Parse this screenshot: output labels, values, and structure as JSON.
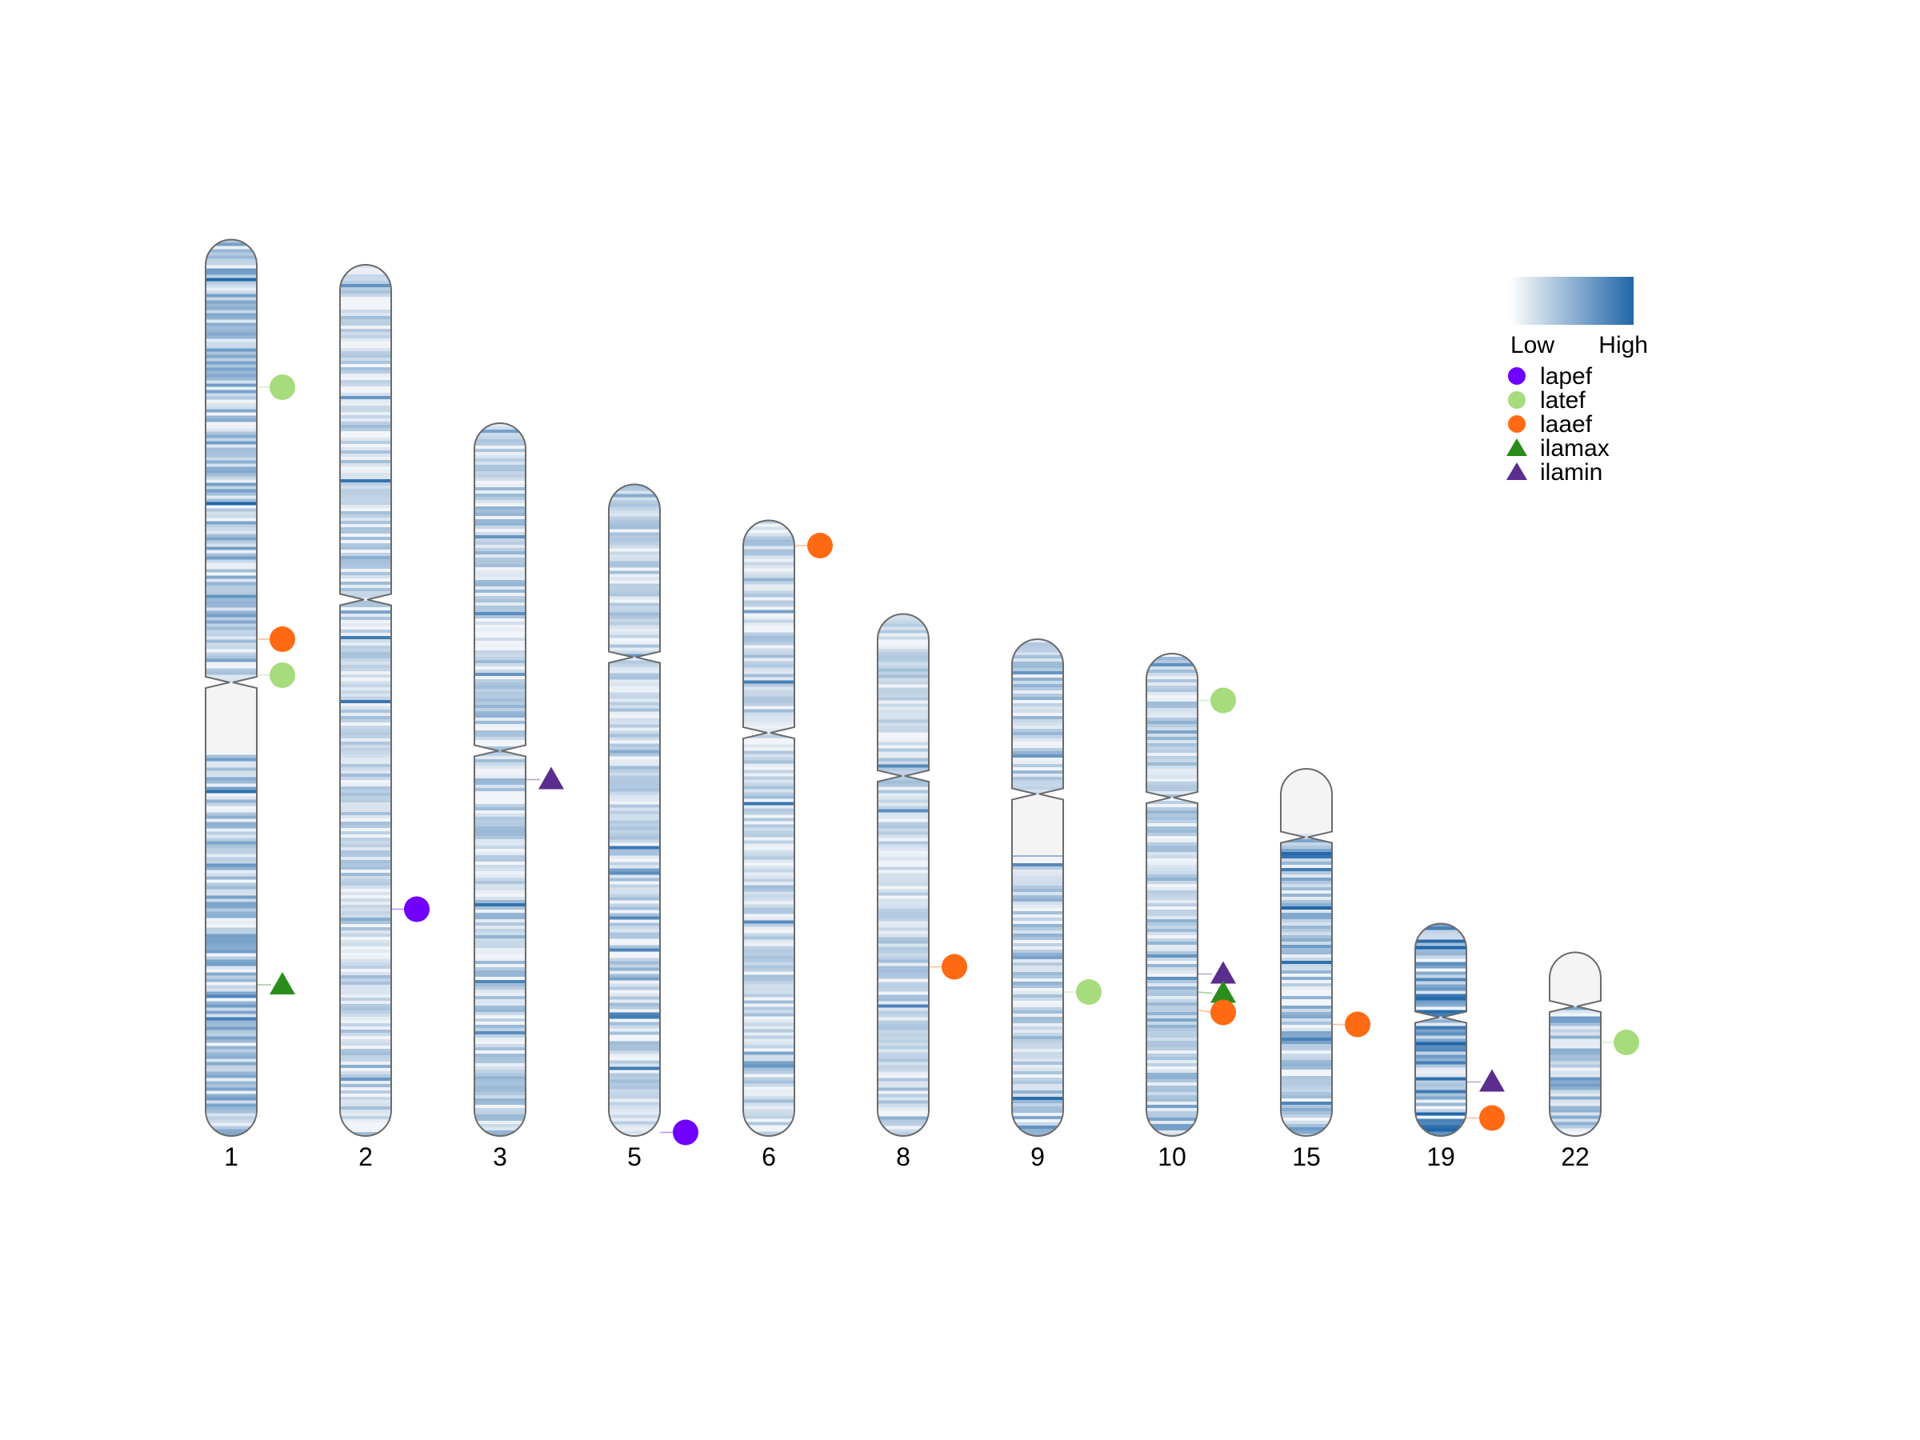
{
  "colors": {
    "low": "#f1f4f8",
    "high": "#2066a8",
    "outline": "#6b6b6b",
    "lapef": "#7000ff",
    "latef": "#a6dc7c",
    "laaef": "#ff6a13",
    "ilamax": "#2a8c1a",
    "ilamin": "#5b2d8e"
  },
  "legend": {
    "gradient_low": "Low",
    "gradient_high": "High",
    "items": [
      {
        "key": "lapef",
        "label": "lapef",
        "shape": "circle"
      },
      {
        "key": "latef",
        "label": "latef",
        "shape": "circle"
      },
      {
        "key": "laaef",
        "label": "laaef",
        "shape": "circle"
      },
      {
        "key": "ilamax",
        "label": "ilamax",
        "shape": "triangle"
      },
      {
        "key": "ilamin",
        "label": "ilamin",
        "shape": "triangle"
      }
    ]
  },
  "chromosomes": [
    {
      "name": "1",
      "length": 249,
      "centromere": 123,
      "gap": [
        123,
        143
      ],
      "density": 0.45,
      "seed": 1
    },
    {
      "name": "2",
      "length": 242,
      "centromere": 93,
      "gap": null,
      "density": 0.3,
      "seed": 2
    },
    {
      "name": "3",
      "length": 198,
      "centromere": 91,
      "gap": null,
      "density": 0.35,
      "seed": 3
    },
    {
      "name": "5",
      "length": 181,
      "centromere": 48,
      "gap": null,
      "density": 0.3,
      "seed": 5
    },
    {
      "name": "6",
      "length": 171,
      "centromere": 59,
      "gap": null,
      "density": 0.3,
      "seed": 6
    },
    {
      "name": "8",
      "length": 145,
      "centromere": 45,
      "gap": null,
      "density": 0.3,
      "seed": 8
    },
    {
      "name": "9",
      "length": 138,
      "centromere": 43,
      "gap": [
        43,
        60
      ],
      "density": 0.35,
      "seed": 9
    },
    {
      "name": "10",
      "length": 134,
      "centromere": 40,
      "gap": null,
      "density": 0.35,
      "seed": 10
    },
    {
      "name": "15",
      "length": 102,
      "centromere": 19,
      "gap": [
        0,
        18
      ],
      "density": 0.45,
      "seed": 15
    },
    {
      "name": "19",
      "length": 59,
      "centromere": 26,
      "gap": null,
      "density": 0.7,
      "seed": 19
    },
    {
      "name": "22",
      "length": 51,
      "centromere": 15,
      "gap": [
        0,
        14
      ],
      "density": 0.45,
      "seed": 22
    }
  ],
  "markers": [
    {
      "chr": "1",
      "pos": 41,
      "type": "latef"
    },
    {
      "chr": "1",
      "pos": 111,
      "type": "laaef"
    },
    {
      "chr": "1",
      "pos": 121,
      "type": "latef"
    },
    {
      "chr": "1",
      "pos": 207,
      "type": "ilamax"
    },
    {
      "chr": "2",
      "pos": 179,
      "type": "lapef"
    },
    {
      "chr": "3",
      "pos": 99,
      "type": "ilamin"
    },
    {
      "chr": "5",
      "pos": 180,
      "type": "lapef"
    },
    {
      "chr": "6",
      "pos": 7,
      "type": "laaef"
    },
    {
      "chr": "8",
      "pos": 98,
      "type": "laaef"
    },
    {
      "chr": "9",
      "pos": 98,
      "type": "latef"
    },
    {
      "chr": "10",
      "pos": 13,
      "type": "latef"
    },
    {
      "chr": "10",
      "pos": 89,
      "type": "ilamin"
    },
    {
      "chr": "10",
      "pos": 94,
      "type": "ilamax"
    },
    {
      "chr": "10",
      "pos": 99,
      "type": "laaef"
    },
    {
      "chr": "15",
      "pos": 71,
      "type": "laaef"
    },
    {
      "chr": "19",
      "pos": 44,
      "type": "ilamin"
    },
    {
      "chr": "19",
      "pos": 54,
      "type": "laaef"
    },
    {
      "chr": "22",
      "pos": 25,
      "type": "latef"
    }
  ]
}
